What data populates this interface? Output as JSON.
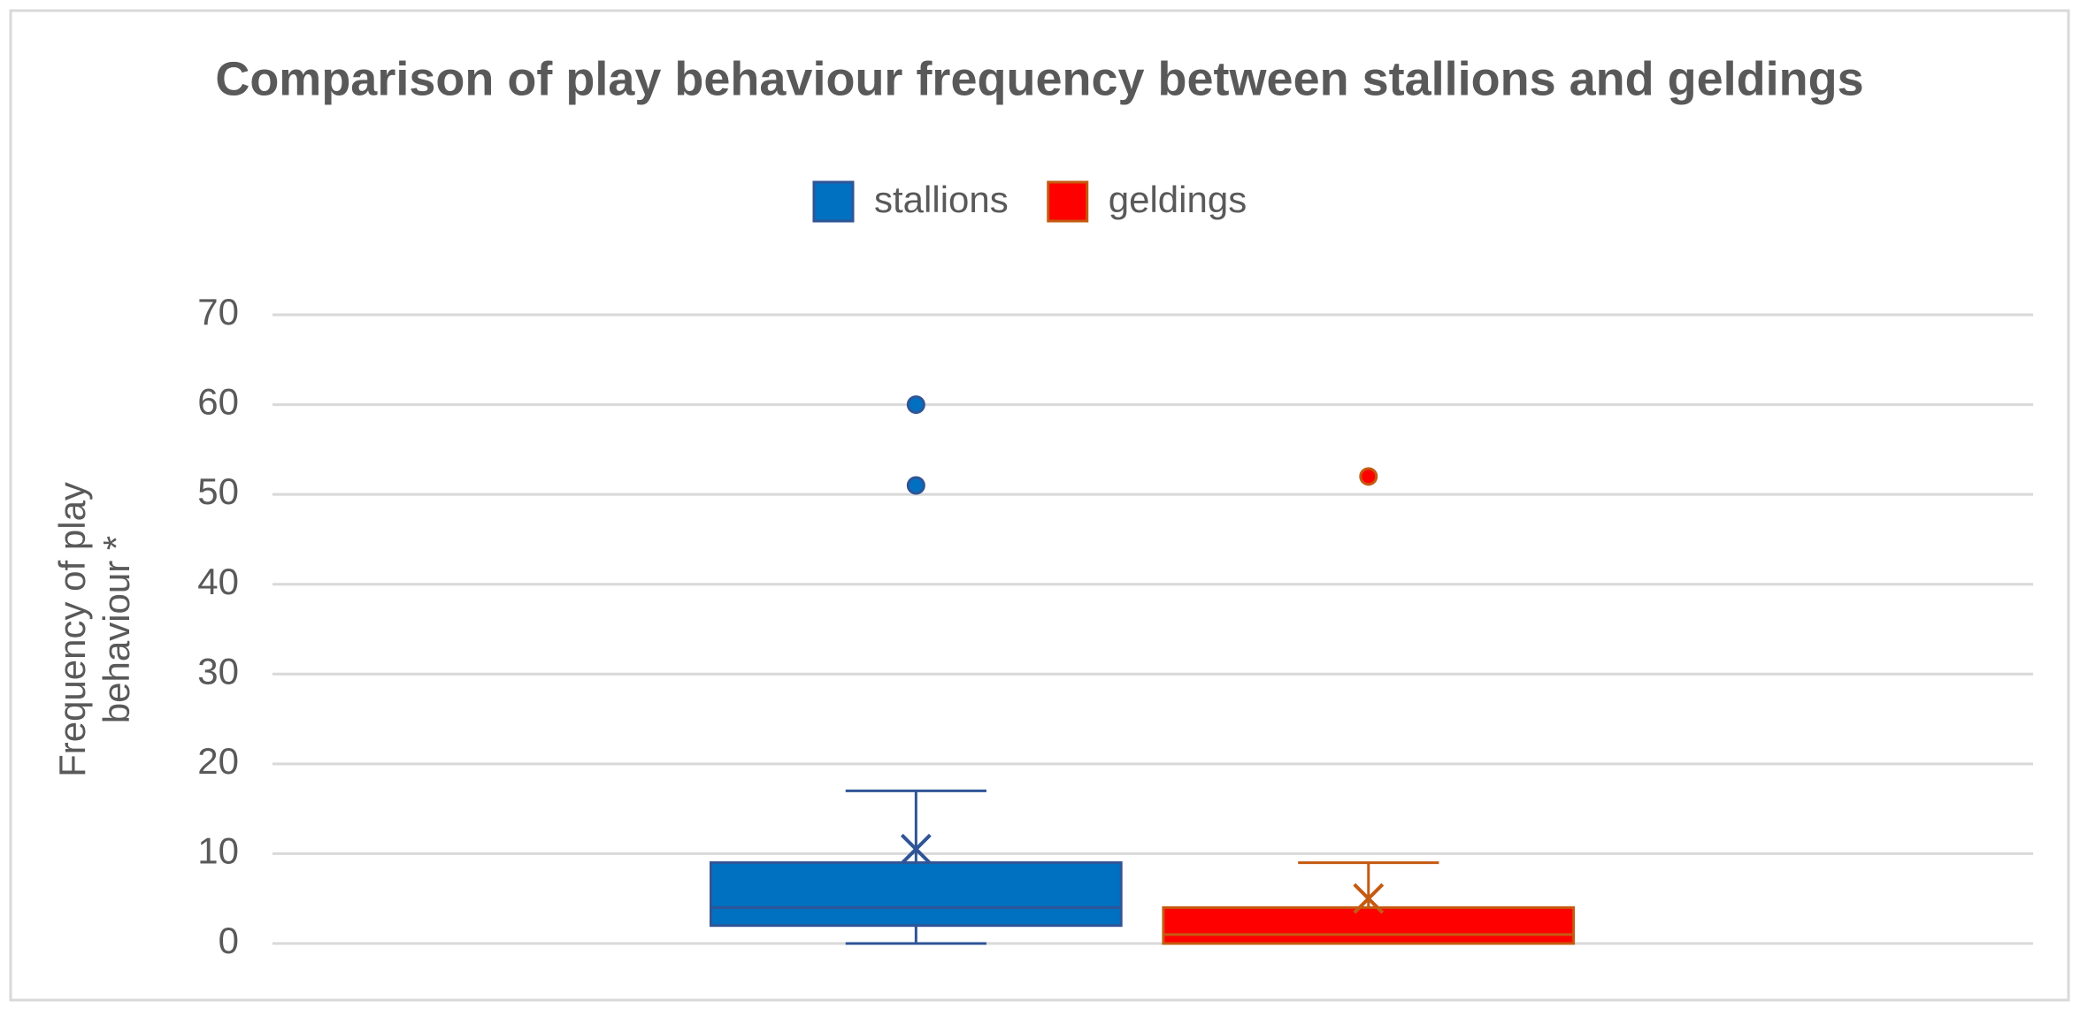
{
  "chart_data": {
    "type": "box",
    "title": "Comparison of play behaviour frequency between stallions and geldings",
    "y_label": "Frequency of play behaviour *",
    "ylim": [
      0,
      70
    ],
    "yticks": [
      0,
      10,
      20,
      30,
      40,
      50,
      60,
      70
    ],
    "grid": true,
    "legend": "top",
    "series": [
      {
        "name": "stallions",
        "color": "#0070c0",
        "edge_color": "#2f5597",
        "min": 0,
        "q1": 2,
        "median": 4,
        "q3": 9,
        "max": 17,
        "mean": 10.5,
        "outliers": [
          51,
          60
        ]
      },
      {
        "name": "geldings",
        "color": "#ff0000",
        "edge_color": "#c55a11",
        "min": 0,
        "q1": 0,
        "median": 1,
        "q3": 4,
        "max": 9,
        "mean": 5,
        "outliers": [
          52
        ]
      }
    ]
  }
}
